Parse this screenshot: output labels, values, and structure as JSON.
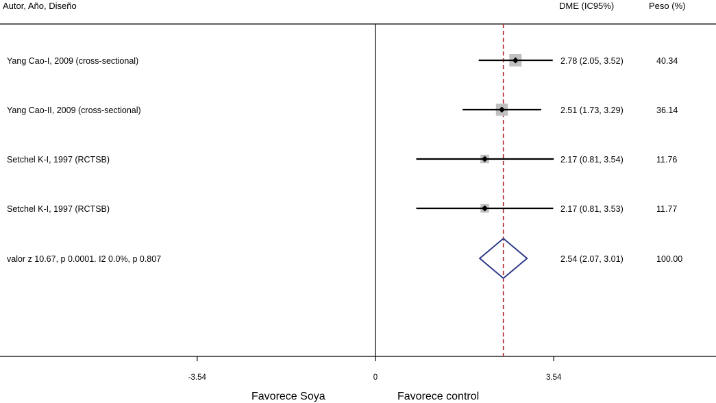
{
  "chart_data": {
    "type": "forest",
    "headers": {
      "label": "Autor, Año, Diseño",
      "estimate": "DME (IC95%)",
      "weight": "Peso (%)"
    },
    "studies": [
      {
        "label": "Yang Cao-I, 2009 (cross-sectional)",
        "estimate": 2.78,
        "ci": [
          2.05,
          3.52
        ],
        "ci_text": "2.78 (2.05, 3.52)",
        "weight": 40.34,
        "weight_text": "40.34"
      },
      {
        "label": "Yang Cao-II, 2009 (cross-sectional)",
        "estimate": 2.51,
        "ci": [
          1.73,
          3.29
        ],
        "ci_text": "2.51 (1.73, 3.29)",
        "weight": 36.14,
        "weight_text": "36.14"
      },
      {
        "label": "Setchel K-I, 1997 (RCTSB)",
        "estimate": 2.17,
        "ci": [
          0.81,
          3.54
        ],
        "ci_text": "2.17 (0.81, 3.54)",
        "weight": 11.76,
        "weight_text": "11.76"
      },
      {
        "label": "Setchel K-I, 1997 (RCTSB)",
        "estimate": 2.17,
        "ci": [
          0.81,
          3.53
        ],
        "ci_text": "2.17 (0.81, 3.53)",
        "weight": 11.77,
        "weight_text": "11.77"
      }
    ],
    "summary": {
      "label": "valor z 10.67, p 0.0001. I2 0.0%, p 0.807",
      "estimate": 2.54,
      "ci": [
        2.07,
        3.01
      ],
      "ci_text": "2.54 (2.07, 3.01)",
      "weight_text": "100.00"
    },
    "x_ticks": [
      {
        "value": -3.54,
        "label": "-3.54"
      },
      {
        "value": 0,
        "label": "0"
      },
      {
        "value": 3.54,
        "label": "3.54"
      }
    ],
    "xlim": [
      -7.4,
      6.7
    ],
    "reference_line": 2.54,
    "favours_left": "Favorece Soya",
    "favours_right": "Favorece control",
    "colors": {
      "reference_line": "#b0272d",
      "summary_diamond": "#2e3a87",
      "weight_box": "#c0c0c0",
      "ci_line": "#000000"
    }
  }
}
